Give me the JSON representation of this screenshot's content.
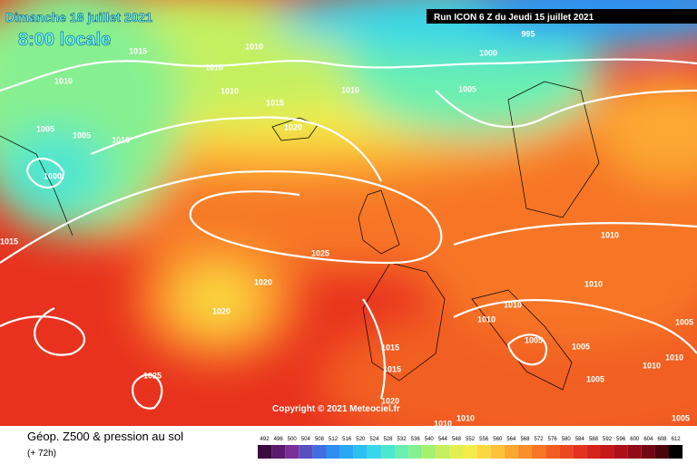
{
  "header": {
    "date": "Dimanche 18 juillet 2021",
    "time": "8:00 locale",
    "run": "Run ICON 6 Z du Jeudi 15 juillet 2021"
  },
  "copyright": "Copyright © 2021 Meteociel.fr",
  "footer": {
    "title": "Géop. Z500 & pression au sol",
    "lead": "(+ 72h)"
  },
  "isobar_labels": [
    "1015",
    "1010",
    "1010",
    "1010",
    "1010",
    "1010",
    "1005",
    "1005",
    "1000",
    "1015",
    "1020",
    "995",
    "1000",
    "1005",
    "1010",
    "1015",
    "1025",
    "1020",
    "1020",
    "1025",
    "1010",
    "1010",
    "1010",
    "1010",
    "1005",
    "1005",
    "1005",
    "1015",
    "1015",
    "1020",
    "1010",
    "1010",
    "1005",
    "1010",
    "1010",
    "1005"
  ],
  "colorbar": {
    "ticks": [
      492,
      496,
      500,
      504,
      508,
      512,
      516,
      520,
      524,
      528,
      532,
      536,
      540,
      544,
      548,
      552,
      556,
      560,
      564,
      568,
      572,
      576,
      580,
      584,
      588,
      592,
      596,
      600,
      604,
      608,
      612
    ],
    "colors": [
      "#3a0a3f",
      "#5b1a6e",
      "#7a2e96",
      "#5a4fc0",
      "#3f6fe0",
      "#2f8ff0",
      "#2aa8f4",
      "#2cc0f0",
      "#38d6e8",
      "#4fe6d0",
      "#6aefb0",
      "#86f090",
      "#a6f070",
      "#c4f060",
      "#e0f050",
      "#f4ec48",
      "#fad840",
      "#fcc238",
      "#fca830",
      "#fa8f2a",
      "#f77626",
      "#f25e22",
      "#ec4820",
      "#e3331e",
      "#d6241c",
      "#c4181a",
      "#ad1018",
      "#920a16",
      "#720612",
      "#4a040c",
      "#000000"
    ]
  }
}
